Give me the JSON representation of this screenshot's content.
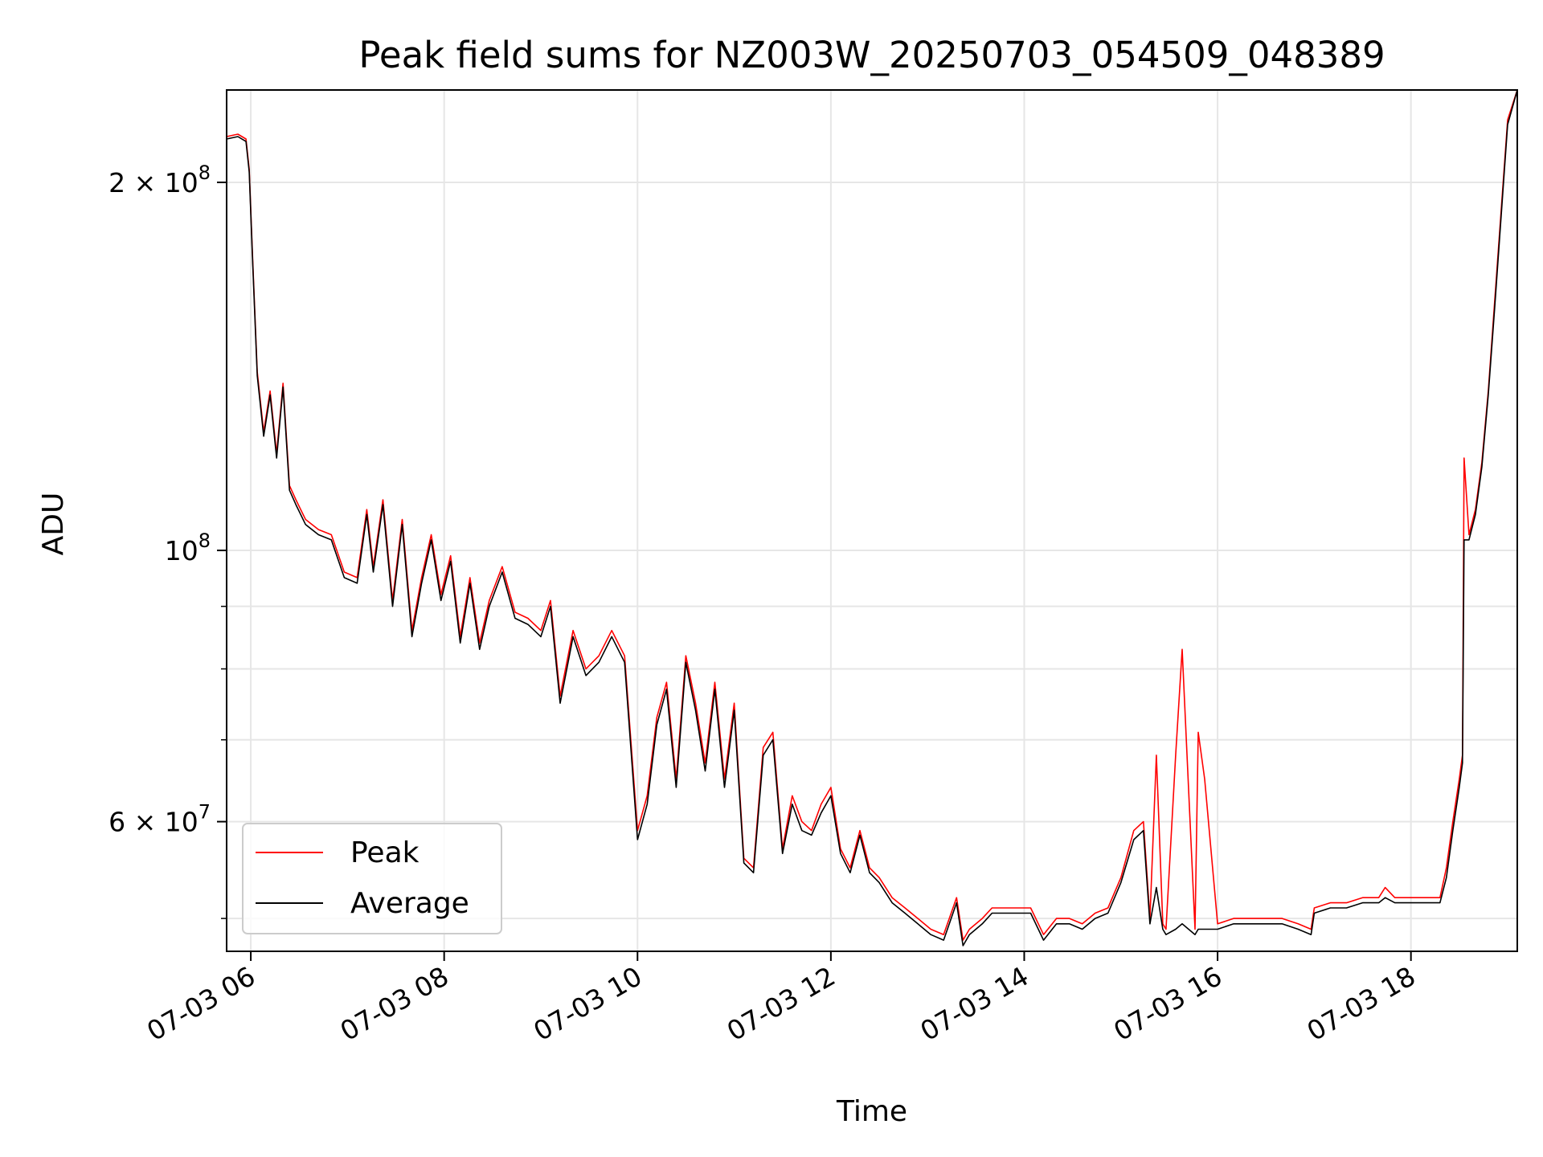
{
  "chart_data": {
    "type": "line",
    "title": "Peak field sums for NZ003W_20250703_054509_048389",
    "xlabel": "Time",
    "ylabel": "ADU",
    "x_unit": "datetime",
    "xlim": [
      "2025-07-03 05:45",
      "2025-07-03 19:06"
    ],
    "ylim": [
      47000000,
      238000000
    ],
    "yscale": "log",
    "grid": true,
    "legend_position": "lower-left",
    "xticks": [
      {
        "value": "2025-07-03 06:00",
        "label": "07-03 06"
      },
      {
        "value": "2025-07-03 08:00",
        "label": "07-03 08"
      },
      {
        "value": "2025-07-03 10:00",
        "label": "07-03 10"
      },
      {
        "value": "2025-07-03 12:00",
        "label": "07-03 12"
      },
      {
        "value": "2025-07-03 14:00",
        "label": "07-03 14"
      },
      {
        "value": "2025-07-03 16:00",
        "label": "07-03 16"
      },
      {
        "value": "2025-07-03 18:00",
        "label": "07-03 18"
      }
    ],
    "yticks_major": [
      {
        "value": 200000000,
        "base": "2 × 10",
        "exp": "8"
      },
      {
        "value": 100000000,
        "base": "10",
        "exp": "8"
      },
      {
        "value": 60000000,
        "base": "6 × 10",
        "exp": "7"
      }
    ],
    "yticks_minor": [
      50000000,
      70000000,
      80000000,
      90000000
    ],
    "series": [
      {
        "name": "Peak",
        "color": "#ff0000",
        "x": [
          "2025-07-03 05:45",
          "2025-07-03 05:52",
          "2025-07-03 05:57",
          "2025-07-03 05:59",
          "2025-07-03 06:01",
          "2025-07-03 06:04",
          "2025-07-03 06:08",
          "2025-07-03 06:12",
          "2025-07-03 06:16",
          "2025-07-03 06:20",
          "2025-07-03 06:24",
          "2025-07-03 06:28",
          "2025-07-03 06:34",
          "2025-07-03 06:42",
          "2025-07-03 06:50",
          "2025-07-03 06:58",
          "2025-07-03 07:06",
          "2025-07-03 07:12",
          "2025-07-03 07:16",
          "2025-07-03 07:22",
          "2025-07-03 07:28",
          "2025-07-03 07:34",
          "2025-07-03 07:40",
          "2025-07-03 07:46",
          "2025-07-03 07:52",
          "2025-07-03 07:58",
          "2025-07-03 08:04",
          "2025-07-03 08:10",
          "2025-07-03 08:16",
          "2025-07-03 08:22",
          "2025-07-03 08:28",
          "2025-07-03 08:36",
          "2025-07-03 08:44",
          "2025-07-03 08:52",
          "2025-07-03 09:00",
          "2025-07-03 09:06",
          "2025-07-03 09:12",
          "2025-07-03 09:20",
          "2025-07-03 09:28",
          "2025-07-03 09:36",
          "2025-07-03 09:44",
          "2025-07-03 09:52",
          "2025-07-03 10:00",
          "2025-07-03 10:06",
          "2025-07-03 10:12",
          "2025-07-03 10:18",
          "2025-07-03 10:24",
          "2025-07-03 10:30",
          "2025-07-03 10:36",
          "2025-07-03 10:42",
          "2025-07-03 10:48",
          "2025-07-03 10:54",
          "2025-07-03 11:00",
          "2025-07-03 11:06",
          "2025-07-03 11:12",
          "2025-07-03 11:18",
          "2025-07-03 11:24",
          "2025-07-03 11:30",
          "2025-07-03 11:36",
          "2025-07-03 11:42",
          "2025-07-03 11:48",
          "2025-07-03 11:54",
          "2025-07-03 12:00",
          "2025-07-03 12:06",
          "2025-07-03 12:12",
          "2025-07-03 12:18",
          "2025-07-03 12:24",
          "2025-07-03 12:30",
          "2025-07-03 12:38",
          "2025-07-03 12:46",
          "2025-07-03 12:54",
          "2025-07-03 13:02",
          "2025-07-03 13:10",
          "2025-07-03 13:18",
          "2025-07-03 13:22",
          "2025-07-03 13:26",
          "2025-07-03 13:34",
          "2025-07-03 13:40",
          "2025-07-03 13:48",
          "2025-07-03 13:56",
          "2025-07-03 14:04",
          "2025-07-03 14:12",
          "2025-07-03 14:20",
          "2025-07-03 14:28",
          "2025-07-03 14:36",
          "2025-07-03 14:44",
          "2025-07-03 14:52",
          "2025-07-03 15:00",
          "2025-07-03 15:08",
          "2025-07-03 15:14",
          "2025-07-03 15:18",
          "2025-07-03 15:22",
          "2025-07-03 15:26",
          "2025-07-03 15:28",
          "2025-07-03 15:34",
          "2025-07-03 15:38",
          "2025-07-03 15:46",
          "2025-07-03 15:48",
          "2025-07-03 15:52",
          "2025-07-03 16:00",
          "2025-07-03 16:10",
          "2025-07-03 16:20",
          "2025-07-03 16:30",
          "2025-07-03 16:40",
          "2025-07-03 16:50",
          "2025-07-03 16:58",
          "2025-07-03 17:00",
          "2025-07-03 17:10",
          "2025-07-03 17:20",
          "2025-07-03 17:30",
          "2025-07-03 17:40",
          "2025-07-03 17:44",
          "2025-07-03 17:50",
          "2025-07-03 18:00",
          "2025-07-03 18:06",
          "2025-07-03 18:12",
          "2025-07-03 18:18",
          "2025-07-03 18:22",
          "2025-07-03 18:26",
          "2025-07-03 18:30",
          "2025-07-03 18:32",
          "2025-07-03 18:33",
          "2025-07-03 18:36",
          "2025-07-03 18:40",
          "2025-07-03 18:44",
          "2025-07-03 18:48",
          "2025-07-03 18:52",
          "2025-07-03 18:56",
          "2025-07-03 19:00",
          "2025-07-03 19:06"
        ],
        "y": [
          218000000,
          219000000,
          217000000,
          205000000,
          175000000,
          140000000,
          125000000,
          135000000,
          120000000,
          137000000,
          113000000,
          110000000,
          106000000,
          104000000,
          103000000,
          96000000,
          95000000,
          108000000,
          97000000,
          110000000,
          91000000,
          106000000,
          86000000,
          95000000,
          103000000,
          92000000,
          99000000,
          85000000,
          95000000,
          84000000,
          91000000,
          97000000,
          89000000,
          88000000,
          86000000,
          91000000,
          76000000,
          86000000,
          80000000,
          82000000,
          86000000,
          82000000,
          59000000,
          63000000,
          73000000,
          78000000,
          65000000,
          82000000,
          75000000,
          67000000,
          78000000,
          65000000,
          75000000,
          56000000,
          55000000,
          69000000,
          71000000,
          57000000,
          63000000,
          60000000,
          59000000,
          62000000,
          64000000,
          57000000,
          55000000,
          59000000,
          55000000,
          54000000,
          52000000,
          51000000,
          50000000,
          49000000,
          48500000,
          52000000,
          48000000,
          49000000,
          50000000,
          51000000,
          51000000,
          51000000,
          51000000,
          48500000,
          50000000,
          50000000,
          49500000,
          50500000,
          51000000,
          54000000,
          59000000,
          60000000,
          50000000,
          68000000,
          49500000,
          49000000,
          68000000,
          83000000,
          49000000,
          71000000,
          65000000,
          49500000,
          50000000,
          50000000,
          50000000,
          50000000,
          49500000,
          49000000,
          51000000,
          51500000,
          51500000,
          52000000,
          52000000,
          53000000,
          52000000,
          52000000,
          52000000,
          52000000,
          52000000,
          55000000,
          60000000,
          65000000,
          68000000,
          119000000,
          103000000,
          108000000,
          118000000,
          135000000,
          160000000,
          190000000,
          225000000,
          238000000
        ]
      },
      {
        "name": "Average",
        "color": "#000000",
        "x": [
          "2025-07-03 05:45",
          "2025-07-03 05:52",
          "2025-07-03 05:57",
          "2025-07-03 05:59",
          "2025-07-03 06:01",
          "2025-07-03 06:04",
          "2025-07-03 06:08",
          "2025-07-03 06:12",
          "2025-07-03 06:16",
          "2025-07-03 06:20",
          "2025-07-03 06:24",
          "2025-07-03 06:28",
          "2025-07-03 06:34",
          "2025-07-03 06:42",
          "2025-07-03 06:50",
          "2025-07-03 06:58",
          "2025-07-03 07:06",
          "2025-07-03 07:12",
          "2025-07-03 07:16",
          "2025-07-03 07:22",
          "2025-07-03 07:28",
          "2025-07-03 07:34",
          "2025-07-03 07:40",
          "2025-07-03 07:46",
          "2025-07-03 07:52",
          "2025-07-03 07:58",
          "2025-07-03 08:04",
          "2025-07-03 08:10",
          "2025-07-03 08:16",
          "2025-07-03 08:22",
          "2025-07-03 08:28",
          "2025-07-03 08:36",
          "2025-07-03 08:44",
          "2025-07-03 08:52",
          "2025-07-03 09:00",
          "2025-07-03 09:06",
          "2025-07-03 09:12",
          "2025-07-03 09:20",
          "2025-07-03 09:28",
          "2025-07-03 09:36",
          "2025-07-03 09:44",
          "2025-07-03 09:52",
          "2025-07-03 10:00",
          "2025-07-03 10:06",
          "2025-07-03 10:12",
          "2025-07-03 10:18",
          "2025-07-03 10:24",
          "2025-07-03 10:30",
          "2025-07-03 10:36",
          "2025-07-03 10:42",
          "2025-07-03 10:48",
          "2025-07-03 10:54",
          "2025-07-03 11:00",
          "2025-07-03 11:06",
          "2025-07-03 11:12",
          "2025-07-03 11:18",
          "2025-07-03 11:24",
          "2025-07-03 11:30",
          "2025-07-03 11:36",
          "2025-07-03 11:42",
          "2025-07-03 11:48",
          "2025-07-03 11:54",
          "2025-07-03 12:00",
          "2025-07-03 12:06",
          "2025-07-03 12:12",
          "2025-07-03 12:18",
          "2025-07-03 12:24",
          "2025-07-03 12:30",
          "2025-07-03 12:38",
          "2025-07-03 12:46",
          "2025-07-03 12:54",
          "2025-07-03 13:02",
          "2025-07-03 13:10",
          "2025-07-03 13:18",
          "2025-07-03 13:22",
          "2025-07-03 13:26",
          "2025-07-03 13:34",
          "2025-07-03 13:40",
          "2025-07-03 13:48",
          "2025-07-03 13:56",
          "2025-07-03 14:04",
          "2025-07-03 14:12",
          "2025-07-03 14:20",
          "2025-07-03 14:28",
          "2025-07-03 14:36",
          "2025-07-03 14:44",
          "2025-07-03 14:52",
          "2025-07-03 15:00",
          "2025-07-03 15:08",
          "2025-07-03 15:14",
          "2025-07-03 15:18",
          "2025-07-03 15:22",
          "2025-07-03 15:26",
          "2025-07-03 15:28",
          "2025-07-03 15:34",
          "2025-07-03 15:38",
          "2025-07-03 15:46",
          "2025-07-03 15:48",
          "2025-07-03 15:52",
          "2025-07-03 16:00",
          "2025-07-03 16:10",
          "2025-07-03 16:20",
          "2025-07-03 16:30",
          "2025-07-03 16:40",
          "2025-07-03 16:50",
          "2025-07-03 16:58",
          "2025-07-03 17:00",
          "2025-07-03 17:10",
          "2025-07-03 17:20",
          "2025-07-03 17:30",
          "2025-07-03 17:40",
          "2025-07-03 17:44",
          "2025-07-03 17:50",
          "2025-07-03 18:00",
          "2025-07-03 18:06",
          "2025-07-03 18:12",
          "2025-07-03 18:18",
          "2025-07-03 18:22",
          "2025-07-03 18:26",
          "2025-07-03 18:30",
          "2025-07-03 18:32",
          "2025-07-03 18:33",
          "2025-07-03 18:36",
          "2025-07-03 18:40",
          "2025-07-03 18:44",
          "2025-07-03 18:48",
          "2025-07-03 18:52",
          "2025-07-03 18:56",
          "2025-07-03 19:00",
          "2025-07-03 19:06"
        ],
        "y": [
          217000000,
          218000000,
          216000000,
          204000000,
          174000000,
          139000000,
          124000000,
          134000000,
          119000000,
          136000000,
          112000000,
          109000000,
          105000000,
          103000000,
          102000000,
          95000000,
          94000000,
          107000000,
          96000000,
          109000000,
          90000000,
          105000000,
          85000000,
          94000000,
          102000000,
          91000000,
          98000000,
          84000000,
          94000000,
          83000000,
          90000000,
          96000000,
          88000000,
          87000000,
          85000000,
          90000000,
          75000000,
          85000000,
          79000000,
          81000000,
          85000000,
          81000000,
          58000000,
          62000000,
          72000000,
          77000000,
          64000000,
          81000000,
          74000000,
          66000000,
          77000000,
          64000000,
          74000000,
          55500000,
          54500000,
          68000000,
          70000000,
          56500000,
          62000000,
          59000000,
          58500000,
          61000000,
          63000000,
          56500000,
          54500000,
          58500000,
          54500000,
          53500000,
          51500000,
          50500000,
          49500000,
          48500000,
          48000000,
          51500000,
          47500000,
          48500000,
          49500000,
          50500000,
          50500000,
          50500000,
          50500000,
          48000000,
          49500000,
          49500000,
          49000000,
          50000000,
          50500000,
          53500000,
          58000000,
          59000000,
          49500000,
          53000000,
          49000000,
          48500000,
          49000000,
          49500000,
          48500000,
          49000000,
          49000000,
          49000000,
          49500000,
          49500000,
          49500000,
          49500000,
          49000000,
          48500000,
          50500000,
          51000000,
          51000000,
          51500000,
          51500000,
          52000000,
          51500000,
          51500000,
          51500000,
          51500000,
          51500000,
          54000000,
          59000000,
          64000000,
          67000000,
          102000000,
          102000000,
          107000000,
          117000000,
          134000000,
          158000000,
          188000000,
          223000000,
          238000000
        ]
      }
    ],
    "legend": [
      {
        "label": "Peak",
        "color": "#ff0000"
      },
      {
        "label": "Average",
        "color": "#000000"
      }
    ]
  }
}
